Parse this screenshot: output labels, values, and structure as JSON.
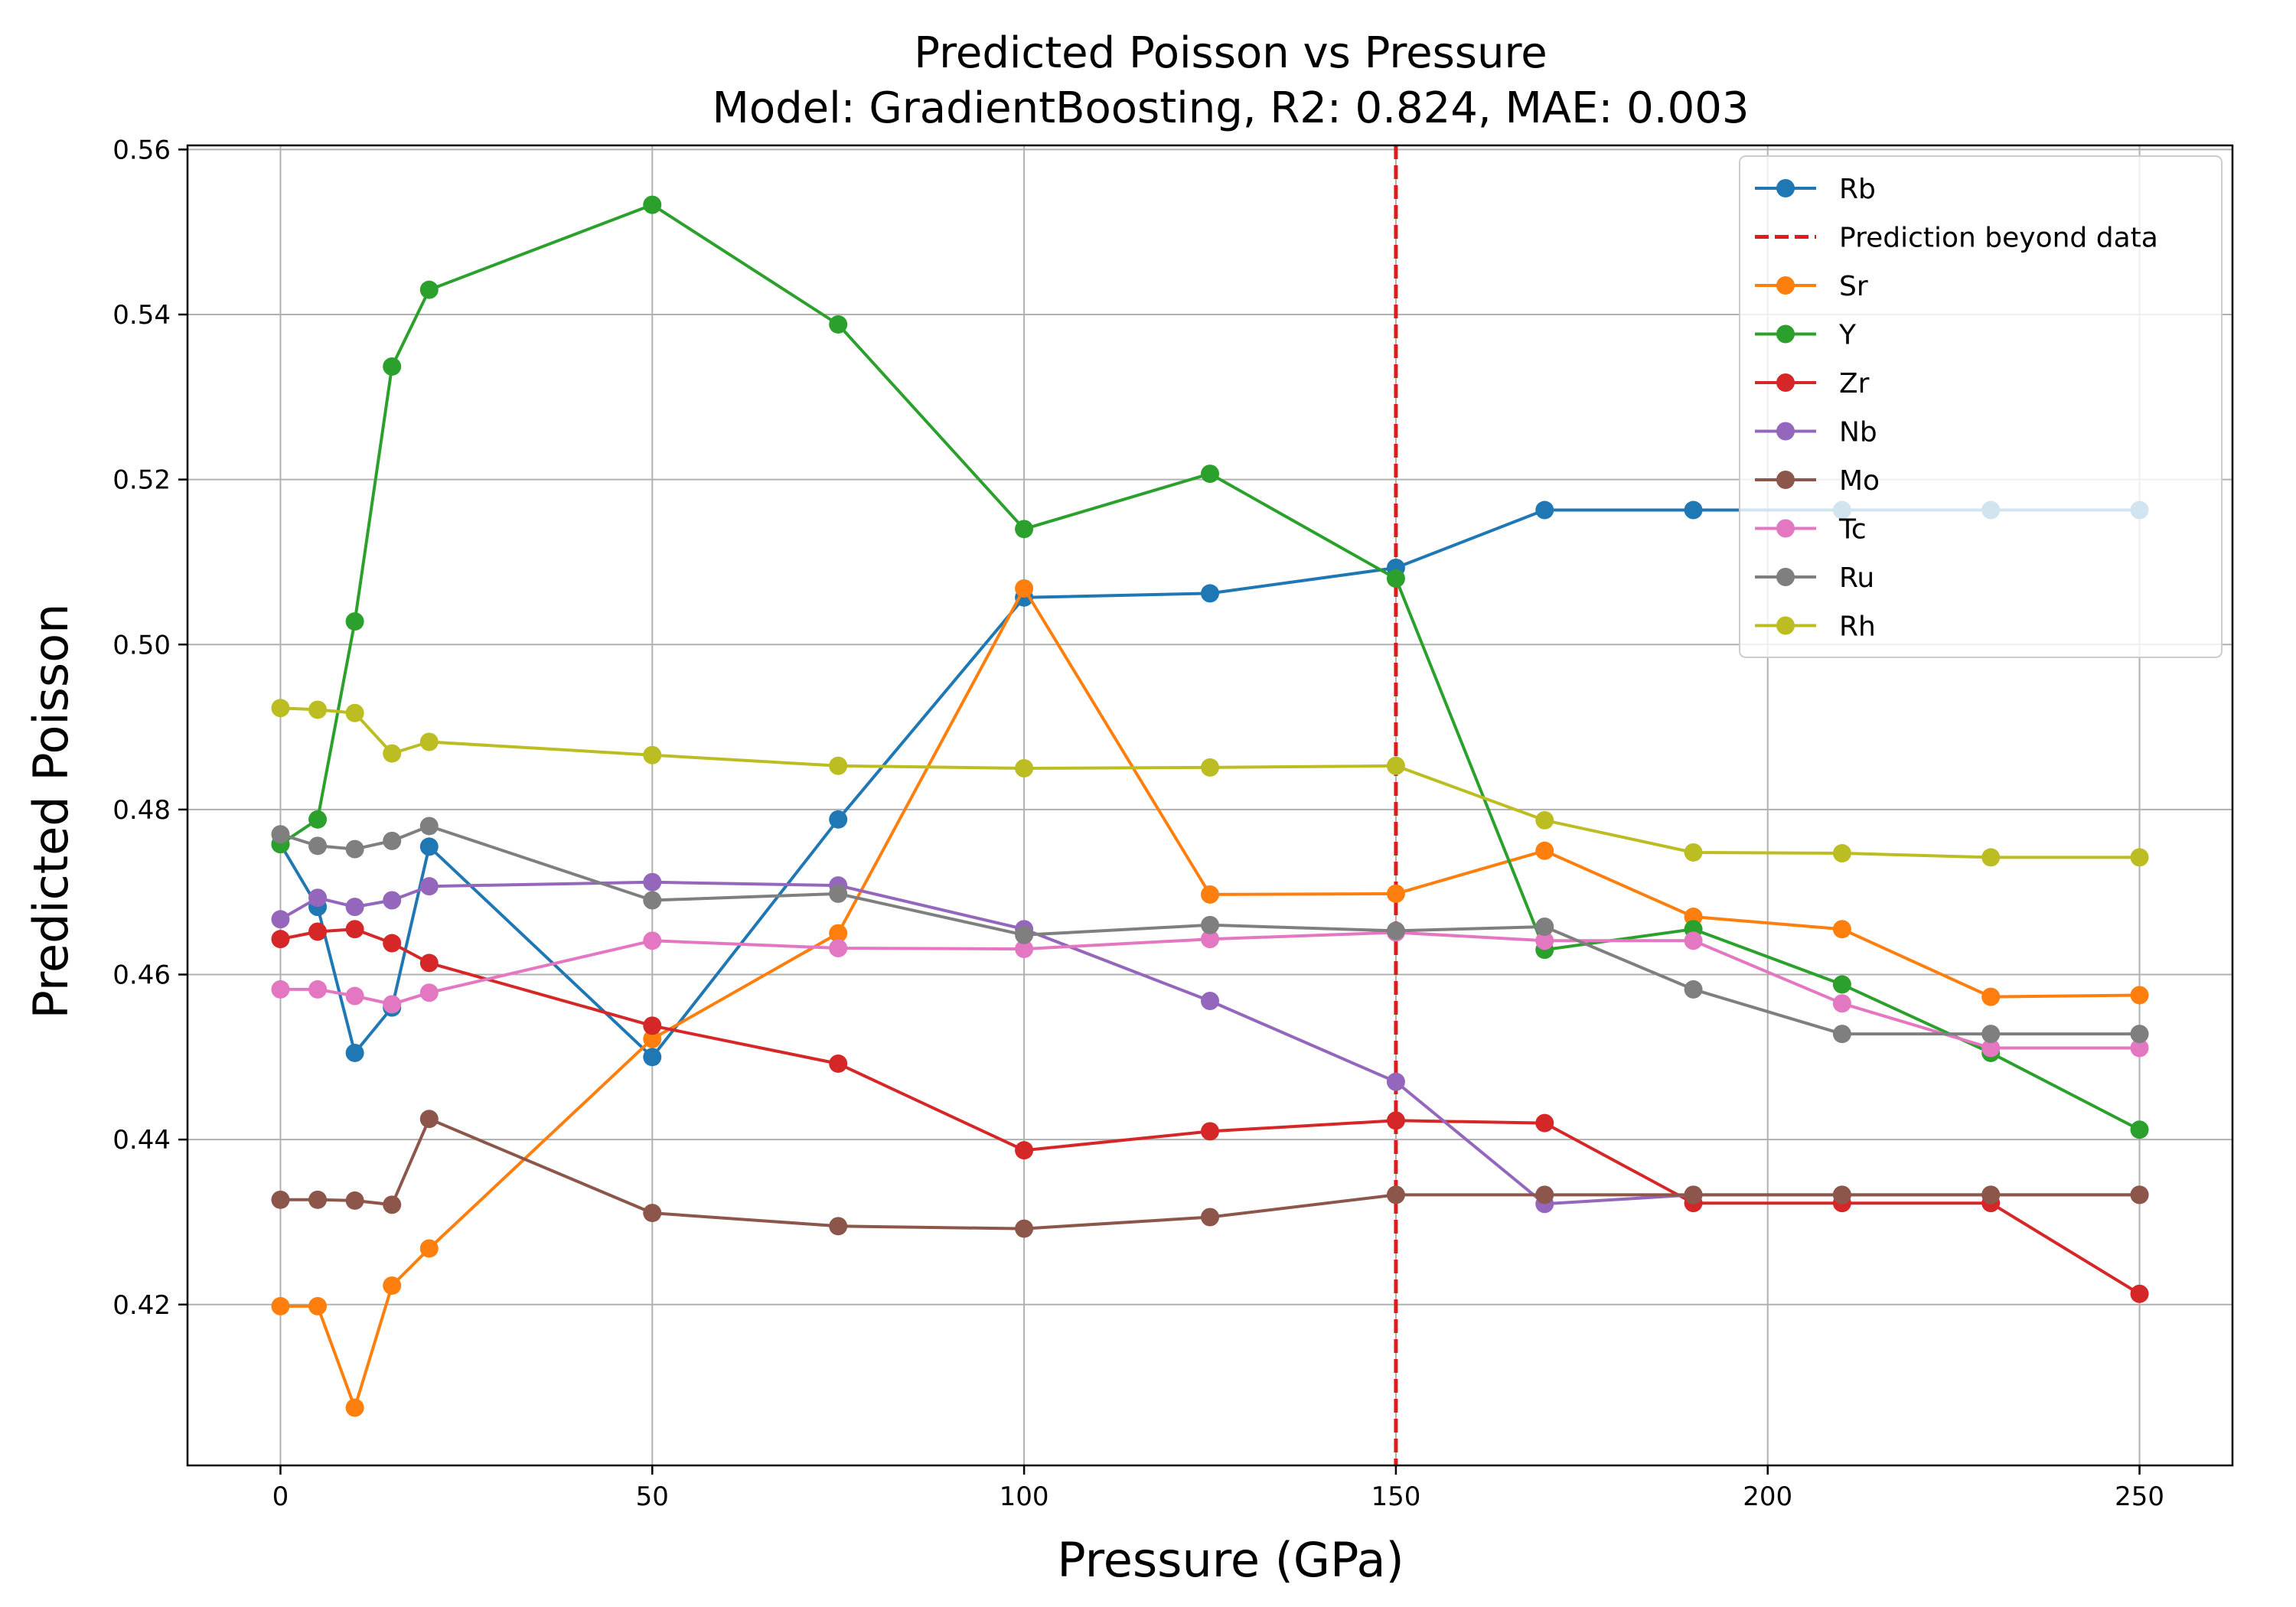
{
  "chart_data": {
    "type": "line",
    "title": "Predicted Poisson vs Pressure",
    "subtitle": "Model: GradientBoosting, R2: 0.824, MAE: 0.003",
    "xlabel": "Pressure (GPa)",
    "ylabel": "Predicted Poisson",
    "xlim": [
      -12.5,
      262.5
    ],
    "ylim": [
      0.4005,
      0.5605
    ],
    "xticks": [
      0,
      50,
      100,
      150,
      200,
      250
    ],
    "yticks": [
      0.42,
      0.44,
      0.46,
      0.48,
      0.5,
      0.52,
      0.54,
      0.56
    ],
    "xtick_labels": [
      "0",
      "50",
      "100",
      "150",
      "200",
      "250"
    ],
    "ytick_labels": [
      "0.42",
      "0.44",
      "0.46",
      "0.48",
      "0.50",
      "0.52",
      "0.54",
      "0.56"
    ],
    "grid": true,
    "legend_position": "top-right",
    "vline": {
      "x": 150,
      "label": "Prediction beyond data",
      "color": "#e31a1c"
    },
    "x": [
      0,
      5,
      10,
      15,
      20,
      50,
      75,
      100,
      125,
      150,
      170,
      190,
      210,
      230,
      250
    ],
    "series": [
      {
        "name": "Rb",
        "color": "#1f77b4",
        "values": [
          0.4758,
          0.4682,
          0.4505,
          0.456,
          0.4755,
          0.45,
          0.4788,
          0.5057,
          0.5062,
          0.5093,
          0.5163,
          0.5163,
          0.5163,
          0.5163,
          0.5163
        ]
      },
      {
        "name": "Sr",
        "color": "#ff7f0e",
        "values": [
          0.4198,
          0.4198,
          0.4075,
          0.4223,
          0.4268,
          0.4522,
          0.465,
          0.5068,
          0.4697,
          0.4698,
          0.475,
          0.467,
          0.4655,
          0.4573,
          0.4575
        ]
      },
      {
        "name": "Y",
        "color": "#2ca02c",
        "values": [
          0.4758,
          0.4788,
          0.5028,
          0.5337,
          0.543,
          0.5533,
          0.5388,
          0.514,
          0.5207,
          0.508,
          0.463,
          0.4655,
          0.4588,
          0.4505,
          0.4412
        ]
      },
      {
        "name": "Zr",
        "color": "#d62728",
        "values": [
          0.4643,
          0.4652,
          0.4655,
          0.4638,
          0.4614,
          0.4538,
          0.4492,
          0.4387,
          0.441,
          0.4423,
          0.442,
          0.4323,
          0.4323,
          0.4323,
          0.4213
        ]
      },
      {
        "name": "Nb",
        "color": "#9467bd",
        "values": [
          0.4667,
          0.4693,
          0.4682,
          0.469,
          0.4707,
          0.4712,
          0.4708,
          0.4655,
          0.4568,
          0.447,
          0.4322,
          0.4333,
          0.4333,
          0.4333,
          0.4333
        ]
      },
      {
        "name": "Mo",
        "color": "#8c564b",
        "values": [
          0.4327,
          0.4327,
          0.4326,
          0.4321,
          0.4425,
          0.4311,
          0.4295,
          0.4292,
          0.4306,
          0.4333,
          0.4333,
          0.4333,
          0.4333,
          0.4333,
          0.4333
        ]
      },
      {
        "name": "Tc",
        "color": "#e377c2",
        "values": [
          0.4582,
          0.4582,
          0.4574,
          0.4564,
          0.4578,
          0.4641,
          0.4632,
          0.4631,
          0.4643,
          0.4651,
          0.4641,
          0.4641,
          0.4565,
          0.4511,
          0.4511
        ]
      },
      {
        "name": "Ru",
        "color": "#7f7f7f",
        "values": [
          0.477,
          0.4756,
          0.4752,
          0.4762,
          0.478,
          0.469,
          0.4698,
          0.4648,
          0.466,
          0.4653,
          0.4658,
          0.4582,
          0.4528,
          0.4528,
          0.4528
        ]
      },
      {
        "name": "Rh",
        "color": "#bcbd22",
        "values": [
          0.4923,
          0.4921,
          0.4917,
          0.4868,
          0.4882,
          0.4866,
          0.4853,
          0.485,
          0.4851,
          0.4853,
          0.4787,
          0.4748,
          0.4747,
          0.4742,
          0.4742
        ]
      }
    ],
    "legend_order": [
      "Rb",
      "Prediction beyond data",
      "Sr",
      "Y",
      "Zr",
      "Nb",
      "Mo",
      "Tc",
      "Ru",
      "Rh"
    ]
  }
}
